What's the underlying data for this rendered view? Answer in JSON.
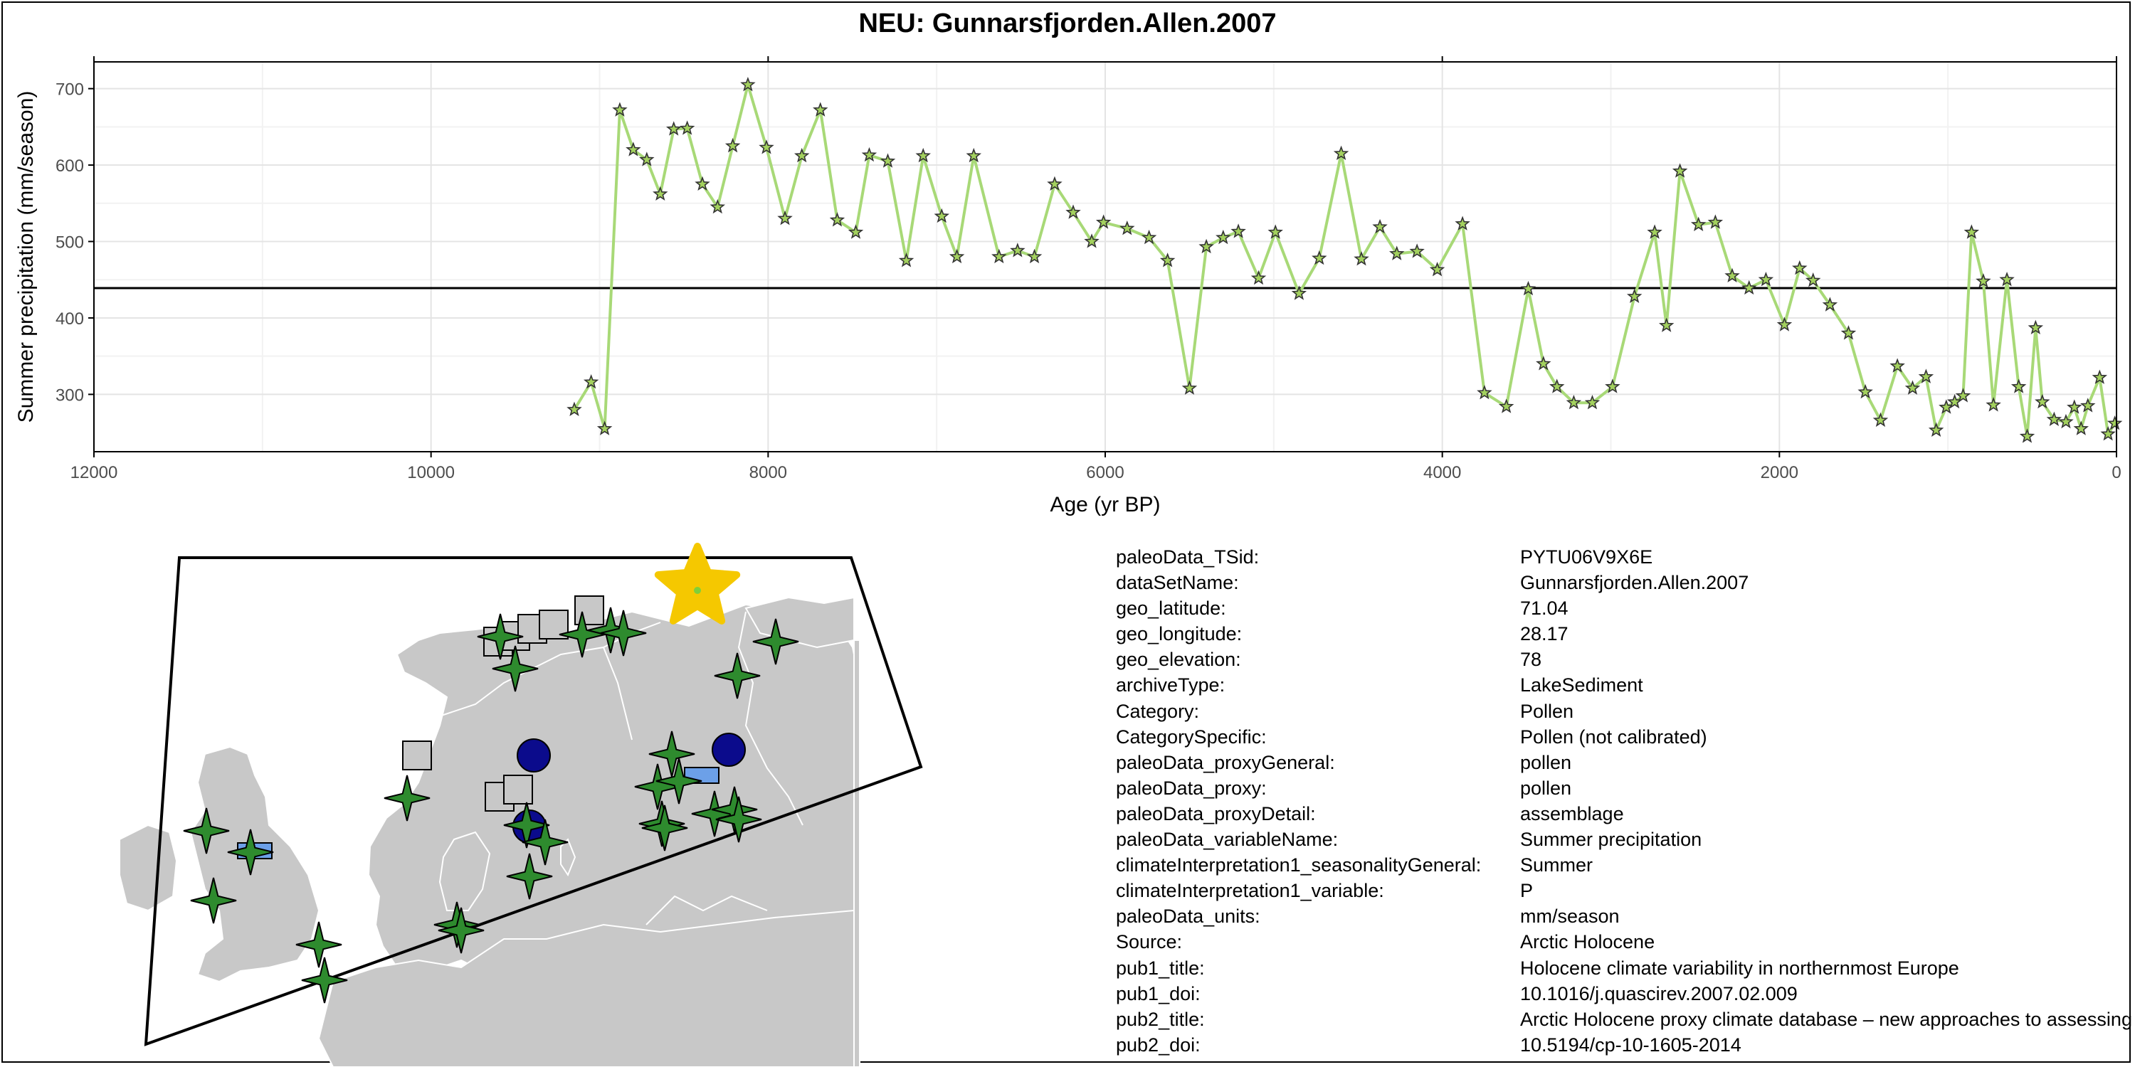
{
  "title": "NEU: Gunnarsfjorden.Allen.2007",
  "colors": {
    "line": "#a8d977",
    "marker_fill": "#a3d15e",
    "mean_line": "#000000",
    "land": "#c8c8c8",
    "border": "#ffffff",
    "star_site": "#2e8b2e",
    "circle_site": "#0b0b8c",
    "square_site": "#c8c8c8",
    "rect_site": "#6ca0e8",
    "highlight_star": "#f5c800"
  },
  "chart_data": {
    "type": "line",
    "title": "NEU: Gunnarsfjorden.Allen.2007",
    "xlabel": "Age (yr BP)",
    "ylabel": "Summer precipitation (mm/season)",
    "xlim": [
      12000,
      0
    ],
    "ylim": [
      225,
      735
    ],
    "x_reversed": true,
    "x_ticks": [
      12000,
      10000,
      8000,
      6000,
      4000,
      2000,
      0
    ],
    "y_ticks": [
      300,
      400,
      500,
      600,
      700
    ],
    "grid": true,
    "mean_line": 439,
    "marker": "star",
    "series": [
      {
        "x": [
          9150,
          9050,
          8970,
          8880,
          8800,
          8720,
          8640,
          8560,
          8480,
          8390,
          8300,
          8210,
          8120,
          8010,
          7900,
          7800,
          7690,
          7590,
          7480,
          7400,
          7290,
          7180,
          7080,
          6970,
          6880,
          6780,
          6630,
          6520,
          6420,
          6300,
          6190,
          6080,
          6010,
          5870,
          5740,
          5630,
          5500,
          5400,
          5300,
          5210,
          5090,
          4990,
          4850,
          4730,
          4600,
          4480,
          4370,
          4270,
          4150,
          4030,
          3880,
          3750,
          3620,
          3490,
          3400,
          3320,
          3220,
          3110,
          2990,
          2860,
          2740,
          2670,
          2590,
          2480,
          2380,
          2280,
          2180,
          2080,
          1970,
          1880,
          1800,
          1700,
          1590,
          1490,
          1400,
          1300,
          1210,
          1130,
          1070,
          1010,
          960,
          910,
          860,
          790,
          730,
          650,
          580,
          530,
          480,
          440,
          370,
          300,
          250,
          210,
          170,
          100,
          50,
          10
        ],
        "y": [
          280,
          316,
          255,
          672,
          620,
          607,
          562,
          647,
          648,
          575,
          545,
          625,
          705,
          623,
          530,
          612,
          672,
          528,
          512,
          613,
          605,
          475,
          612,
          533,
          480,
          612,
          480,
          488,
          480,
          575,
          538,
          500,
          525,
          517,
          505,
          475,
          308,
          493,
          505,
          513,
          452,
          512,
          432,
          478,
          615,
          477,
          519,
          484,
          487,
          463,
          523,
          302,
          284,
          438,
          340,
          310,
          289,
          289,
          310,
          428,
          512,
          390,
          592,
          522,
          525,
          455,
          439,
          450,
          391,
          465,
          449,
          417,
          380,
          303,
          266,
          337,
          308,
          323,
          253,
          283,
          290,
          298,
          512,
          448,
          286,
          450,
          310,
          245,
          387,
          290,
          267,
          264,
          283,
          255,
          285,
          322,
          248,
          262
        ]
      }
    ]
  },
  "map": {
    "site_markers": [
      "star",
      "circle",
      "square",
      "rect",
      "highlight-star"
    ]
  },
  "metadata": [
    {
      "key": "paleoData_TSid:",
      "value": "PYTU06V9X6E"
    },
    {
      "key": "dataSetName:",
      "value": "Gunnarsfjorden.Allen.2007"
    },
    {
      "key": "geo_latitude:",
      "value": "71.04"
    },
    {
      "key": "geo_longitude:",
      "value": "28.17"
    },
    {
      "key": "geo_elevation:",
      "value": "78"
    },
    {
      "key": "archiveType:",
      "value": "LakeSediment"
    },
    {
      "key": "Category:",
      "value": "Pollen"
    },
    {
      "key": "CategorySpecific:",
      "value": "Pollen (not calibrated)"
    },
    {
      "key": "paleoData_proxyGeneral:",
      "value": "pollen"
    },
    {
      "key": "paleoData_proxy:",
      "value": "pollen"
    },
    {
      "key": "paleoData_proxyDetail:",
      "value": "assemblage"
    },
    {
      "key": "paleoData_variableName:",
      "value": "Summer precipitation"
    },
    {
      "key": "climateInterpretation1_seasonalityGeneral:",
      "value": "Summer"
    },
    {
      "key": "climateInterpretation1_variable:",
      "value": "P"
    },
    {
      "key": "paleoData_units:",
      "value": "mm/season"
    },
    {
      "key": "Source:",
      "value": "Arctic Holocene"
    },
    {
      "key": "pub1_title:",
      "value": "Holocene climate variability in northernmost Europe"
    },
    {
      "key": "pub1_doi:",
      "value": "10.1016/j.quascirev.2007.02.009"
    },
    {
      "key": "pub2_title:",
      "value": "Arctic Holocene proxy climate database – new approaches to assessing geochronological accuracy and encoding climate variables"
    },
    {
      "key": "pub2_doi:",
      "value": "10.5194/cp-10-1605-2014"
    }
  ]
}
